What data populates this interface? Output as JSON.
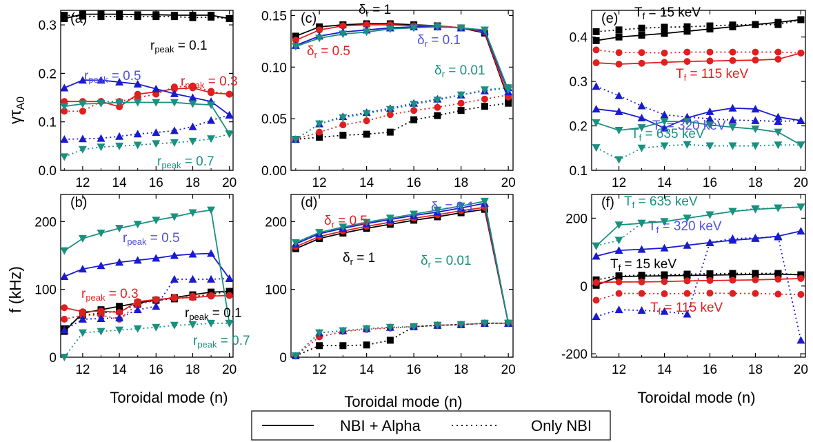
{
  "chart_data": [
    {
      "panel": "(a)",
      "type": "line",
      "ylim": [
        0,
        0.33
      ],
      "yticks": [
        "0.0",
        "0.1",
        "0.2",
        "0.3"
      ],
      "ytick_values": [
        0,
        0.1,
        0.2,
        0.3
      ],
      "ylabel": "γτ",
      "ylabel_sub": "A0",
      "x": [
        11,
        12,
        13,
        14,
        15,
        16,
        17,
        18,
        19,
        20
      ],
      "series": [
        {
          "color": "#000000",
          "marker": "square",
          "solid": [
            0.313,
            0.322,
            0.322,
            0.322,
            0.321,
            0.321,
            0.32,
            0.32,
            0.32,
            0.313
          ],
          "dotted": [
            0.32,
            0.318,
            0.317,
            0.317,
            0.317,
            0.317,
            0.317,
            0.315,
            0.316,
            0.313
          ]
        },
        {
          "color": "#e02020",
          "marker": "circle",
          "solid": [
            0.142,
            0.142,
            0.142,
            0.131,
            0.157,
            0.162,
            0.168,
            0.17,
            0.16,
            0.157
          ],
          "dotted": [
            0.122,
            0.122,
            0.142,
            0.142,
            0.15,
            0.157,
            0.172,
            0.174,
            0.163,
            0.157
          ]
        },
        {
          "color": "#1a1ad0",
          "marker": "triangle-up",
          "solid": [
            0.17,
            0.186,
            0.186,
            0.182,
            0.178,
            0.168,
            0.158,
            0.15,
            0.142,
            0.114
          ],
          "dotted": [
            0.064,
            0.065,
            0.066,
            0.07,
            0.075,
            0.078,
            0.082,
            0.09,
            0.103,
            0.114
          ]
        },
        {
          "color": "#1a9080",
          "marker": "triangle-down",
          "solid": [
            0.132,
            0.137,
            0.138,
            0.14,
            0.14,
            0.14,
            0.14,
            0.137,
            0.135,
            0.075
          ],
          "dotted": [
            0.028,
            0.043,
            0.048,
            0.05,
            0.052,
            0.055,
            0.057,
            0.06,
            0.065,
            0.075
          ]
        }
      ],
      "annotations": [
        {
          "text": "r",
          "sub": "peak",
          "tail": " = 0.1",
          "color": "#000000"
        },
        {
          "text": "r",
          "sub": "peak",
          "tail": " = 0.5",
          "color": "#5050e0"
        },
        {
          "text": "r",
          "sub": "peak",
          "tail": " = 0.3",
          "color": "#e02020"
        },
        {
          "text": "r",
          "sub": "peak",
          "tail": " = 0.7",
          "color": "#1a9080"
        }
      ]
    },
    {
      "panel": "(b)",
      "type": "line",
      "ylim": [
        0,
        240
      ],
      "yticks": [
        "0",
        "100",
        "200"
      ],
      "ytick_values": [
        0,
        100,
        200
      ],
      "ylabel": "f (kHz)",
      "x": [
        11,
        12,
        13,
        14,
        15,
        16,
        17,
        18,
        19,
        20
      ],
      "series": [
        {
          "color": "#000000",
          "marker": "square",
          "solid": [
            38,
            65,
            70,
            75,
            80,
            84,
            88,
            92,
            96,
            97
          ],
          "dotted": [
            42,
            62,
            65,
            68,
            78,
            84,
            86,
            89,
            93,
            97
          ]
        },
        {
          "color": "#e02020",
          "marker": "circle",
          "solid": [
            73,
            67,
            68,
            66,
            82,
            85,
            87,
            88,
            90,
            91
          ],
          "dotted": [
            56,
            62,
            62,
            56,
            78,
            85,
            88,
            90,
            91,
            91
          ]
        },
        {
          "color": "#1a1ad0",
          "marker": "triangle-up",
          "solid": [
            119,
            130,
            135,
            140,
            143,
            146,
            150,
            152,
            153,
            116
          ],
          "dotted": [
            40,
            56,
            57,
            58,
            70,
            75,
            115,
            115,
            115,
            116
          ]
        },
        {
          "color": "#1a9080",
          "marker": "triangle-down",
          "solid": [
            157,
            175,
            183,
            190,
            196,
            202,
            207,
            213,
            217,
            50
          ],
          "dotted": [
            0,
            36,
            38,
            40,
            42,
            44,
            47,
            48,
            50,
            50
          ]
        }
      ],
      "annotations": [
        {
          "text": "r",
          "sub": "peak",
          "tail": " = 0.5",
          "color": "#5050e0"
        },
        {
          "text": "r",
          "sub": "peak",
          "tail": " = 0.3",
          "color": "#e02020"
        },
        {
          "text": "r",
          "sub": "peak",
          "tail": " = 0.1",
          "color": "#000000"
        },
        {
          "text": "r",
          "sub": "peak",
          "tail": " = 0.7",
          "color": "#1a9080"
        }
      ]
    },
    {
      "panel": "(c)",
      "type": "line",
      "ylim": [
        0,
        0.155
      ],
      "yticks": [
        "0.00",
        "0.05",
        "0.10",
        "0.15"
      ],
      "ytick_values": [
        0,
        0.05,
        0.1,
        0.15
      ],
      "x": [
        11,
        12,
        13,
        14,
        15,
        16,
        17,
        18,
        19,
        20
      ],
      "series": [
        {
          "color": "#000000",
          "marker": "square",
          "solid": [
            0.13,
            0.139,
            0.141,
            0.142,
            0.142,
            0.141,
            0.14,
            0.138,
            0.133,
            0.069
          ],
          "dotted": [
            0.03,
            0.032,
            0.034,
            0.035,
            0.037,
            0.049,
            0.053,
            0.058,
            0.062,
            0.065
          ]
        },
        {
          "color": "#e02020",
          "marker": "circle",
          "solid": [
            0.126,
            0.136,
            0.14,
            0.141,
            0.141,
            0.14,
            0.14,
            0.138,
            0.134,
            0.071
          ],
          "dotted": [
            0.03,
            0.037,
            0.044,
            0.048,
            0.054,
            0.058,
            0.061,
            0.065,
            0.069,
            0.073
          ]
        },
        {
          "color": "#1a1ad0",
          "marker": "triangle-up",
          "solid": [
            0.121,
            0.13,
            0.134,
            0.136,
            0.138,
            0.139,
            0.139,
            0.138,
            0.135,
            0.076
          ],
          "dotted": [
            0.03,
            0.045,
            0.052,
            0.056,
            0.06,
            0.065,
            0.069,
            0.073,
            0.077,
            0.08
          ]
        },
        {
          "color": "#1a9080",
          "marker": "triangle-down",
          "solid": [
            0.12,
            0.128,
            0.132,
            0.134,
            0.137,
            0.138,
            0.139,
            0.138,
            0.136,
            0.078
          ],
          "dotted": [
            0.03,
            0.045,
            0.051,
            0.055,
            0.059,
            0.064,
            0.068,
            0.073,
            0.078,
            0.08
          ]
        }
      ],
      "annotations": [
        {
          "text": "δ",
          "sub": "r",
          "tail": " = 1",
          "color": "#000000"
        },
        {
          "text": "δ",
          "sub": "r",
          "tail": " = 0.5",
          "color": "#e02020"
        },
        {
          "text": "δ",
          "sub": "r",
          "tail": " = 0.1",
          "color": "#5050e0"
        },
        {
          "text": "δ",
          "sub": "r",
          "tail": " = 0.01",
          "color": "#1a9080"
        }
      ]
    },
    {
      "panel": "(d)",
      "type": "line",
      "ylim": [
        0,
        240
      ],
      "yticks": [
        "0",
        "100",
        "200"
      ],
      "ytick_values": [
        0,
        100,
        200
      ],
      "x": [
        11,
        12,
        13,
        14,
        15,
        16,
        17,
        18,
        19,
        20
      ],
      "series": [
        {
          "color": "#000000",
          "marker": "square",
          "solid": [
            160,
            175,
            183,
            190,
            196,
            202,
            207,
            213,
            218,
            50
          ],
          "dotted": [
            2,
            17,
            17,
            18,
            25,
            45,
            47,
            48,
            50,
            50
          ]
        },
        {
          "color": "#e02020",
          "marker": "circle",
          "solid": [
            163,
            178,
            186,
            193,
            199,
            205,
            210,
            216,
            221,
            50
          ],
          "dotted": [
            2,
            30,
            38,
            41,
            43,
            45,
            47,
            48,
            50,
            50
          ]
        },
        {
          "color": "#1a1ad0",
          "marker": "triangle-up",
          "solid": [
            167,
            182,
            190,
            197,
            203,
            209,
            214,
            220,
            227,
            50
          ],
          "dotted": [
            2,
            36,
            39,
            42,
            44,
            45,
            47,
            48,
            50,
            50
          ]
        },
        {
          "color": "#1a9080",
          "marker": "triangle-down",
          "solid": [
            169,
            184,
            192,
            199,
            205,
            211,
            217,
            223,
            230,
            50
          ],
          "dotted": [
            2,
            36,
            39,
            42,
            44,
            45,
            47,
            48,
            50,
            50
          ]
        }
      ],
      "annotations": [
        {
          "text": "δ",
          "sub": "r",
          "tail": " = 0.5",
          "color": "#e02020"
        },
        {
          "text": "δ",
          "sub": "r",
          "tail": " = 0.1",
          "color": "#5050e0"
        },
        {
          "text": "δ",
          "sub": "r",
          "tail": " = 1",
          "color": "#000000"
        },
        {
          "text": "δ",
          "sub": "r",
          "tail": " = 0.01",
          "color": "#1a9080"
        }
      ]
    },
    {
      "panel": "(e)",
      "type": "line",
      "ylim": [
        0.1,
        0.46
      ],
      "yticks": [
        "0.1",
        "0.2",
        "0.3",
        "0.4"
      ],
      "ytick_values": [
        0.1,
        0.2,
        0.3,
        0.4
      ],
      "x": [
        11,
        12,
        13,
        14,
        15,
        16,
        17,
        18,
        19,
        20
      ],
      "series": [
        {
          "color": "#000000",
          "marker": "square",
          "solid": [
            0.392,
            0.4,
            0.404,
            0.408,
            0.413,
            0.418,
            0.423,
            0.428,
            0.433,
            0.439
          ],
          "dotted": [
            0.412,
            0.416,
            0.42,
            0.422,
            0.423,
            0.425,
            0.427,
            0.428,
            0.428,
            0.439
          ]
        },
        {
          "color": "#e02020",
          "marker": "circle",
          "solid": [
            0.342,
            0.339,
            0.341,
            0.343,
            0.345,
            0.346,
            0.347,
            0.348,
            0.35,
            0.364
          ],
          "dotted": [
            0.371,
            0.365,
            0.365,
            0.364,
            0.366,
            0.366,
            0.366,
            0.366,
            0.366,
            0.364
          ]
        },
        {
          "color": "#1a1ad0",
          "marker": "triangle-up",
          "solid": [
            0.238,
            0.232,
            0.218,
            0.195,
            0.218,
            0.232,
            0.24,
            0.238,
            0.22,
            0.212
          ],
          "dotted": [
            0.289,
            0.268,
            0.245,
            0.225,
            0.22,
            0.216,
            0.213,
            0.212,
            0.21,
            0.212
          ]
        },
        {
          "color": "#1a9080",
          "marker": "triangle-down",
          "solid": [
            0.207,
            0.19,
            0.196,
            0.21,
            0.21,
            0.202,
            0.197,
            0.193,
            0.186,
            0.157
          ],
          "dotted": [
            0.151,
            0.124,
            0.15,
            0.155,
            0.158,
            0.155,
            0.155,
            0.155,
            0.157,
            0.157
          ]
        }
      ],
      "annotations": [
        {
          "text": "T",
          "sub": "f",
          "tail": " = 15 keV",
          "color": "#000000"
        },
        {
          "text": "T",
          "sub": "f",
          "tail": " = 115 keV",
          "color": "#e02020"
        },
        {
          "text": "T",
          "sub": "f",
          "tail": " = 320 keV",
          "color": "#5050e0"
        },
        {
          "text": "T",
          "sub": "f",
          "tail": " = 635 keV",
          "color": "#1a9080"
        }
      ]
    },
    {
      "panel": "(f)",
      "type": "line",
      "ylim": [
        -210,
        270
      ],
      "yticks": [
        "-200",
        "0",
        "200"
      ],
      "ytick_values": [
        -200,
        0,
        200
      ],
      "x": [
        11,
        12,
        13,
        14,
        15,
        16,
        17,
        18,
        19,
        20
      ],
      "series": [
        {
          "color": "#000000",
          "marker": "square",
          "solid": [
            2,
            28,
            29,
            30,
            31,
            32,
            33,
            34,
            35,
            33
          ],
          "dotted": [
            18,
            30,
            32,
            33,
            35,
            36,
            37,
            37,
            37,
            33
          ]
        },
        {
          "color": "#e02020",
          "marker": "circle",
          "solid": [
            10,
            12,
            12,
            13,
            15,
            16,
            17,
            18,
            20,
            22
          ],
          "dotted": [
            -42,
            -22,
            -22,
            -23,
            -22,
            -21,
            -22,
            -22,
            -24,
            -25
          ]
        },
        {
          "color": "#1a1ad0",
          "marker": "triangle-up",
          "solid": [
            88,
            105,
            108,
            112,
            120,
            128,
            135,
            140,
            147,
            162
          ],
          "dotted": [
            -90,
            -70,
            -72,
            -75,
            -83,
            128,
            140,
            142,
            145,
            -160
          ]
        },
        {
          "color": "#1a9080",
          "marker": "triangle-down",
          "solid": [
            118,
            180,
            185,
            190,
            200,
            210,
            220,
            226,
            230,
            233
          ],
          "dotted": [
            118,
            135,
            185,
            190,
            200,
            210,
            220,
            228,
            230,
            233
          ]
        }
      ],
      "annotations": [
        {
          "text": "T",
          "sub": "f",
          "tail": " = 635 keV",
          "color": "#1a9080"
        },
        {
          "text": "T",
          "sub": "f",
          "tail": " = 320 keV",
          "color": "#5050e0"
        },
        {
          "text": "T",
          "sub": "f",
          "tail": " = 15 keV",
          "color": "#000000"
        },
        {
          "text": "T",
          "sub": "f",
          "tail": " = 115 keV",
          "color": "#e02020"
        }
      ]
    }
  ],
  "figure": {
    "xlabel": "Toroidal mode (n)",
    "xticks": [
      "12",
      "14",
      "16",
      "18",
      "20"
    ],
    "xtick_values": [
      12,
      14,
      16,
      18,
      20
    ],
    "xlim": [
      10.8,
      20.2
    ]
  },
  "legend": {
    "placement": "bottom-center",
    "items": [
      {
        "label": "NBI + Alpha",
        "style": "solid"
      },
      {
        "label": "Only NBI",
        "style": "dotted"
      }
    ]
  }
}
